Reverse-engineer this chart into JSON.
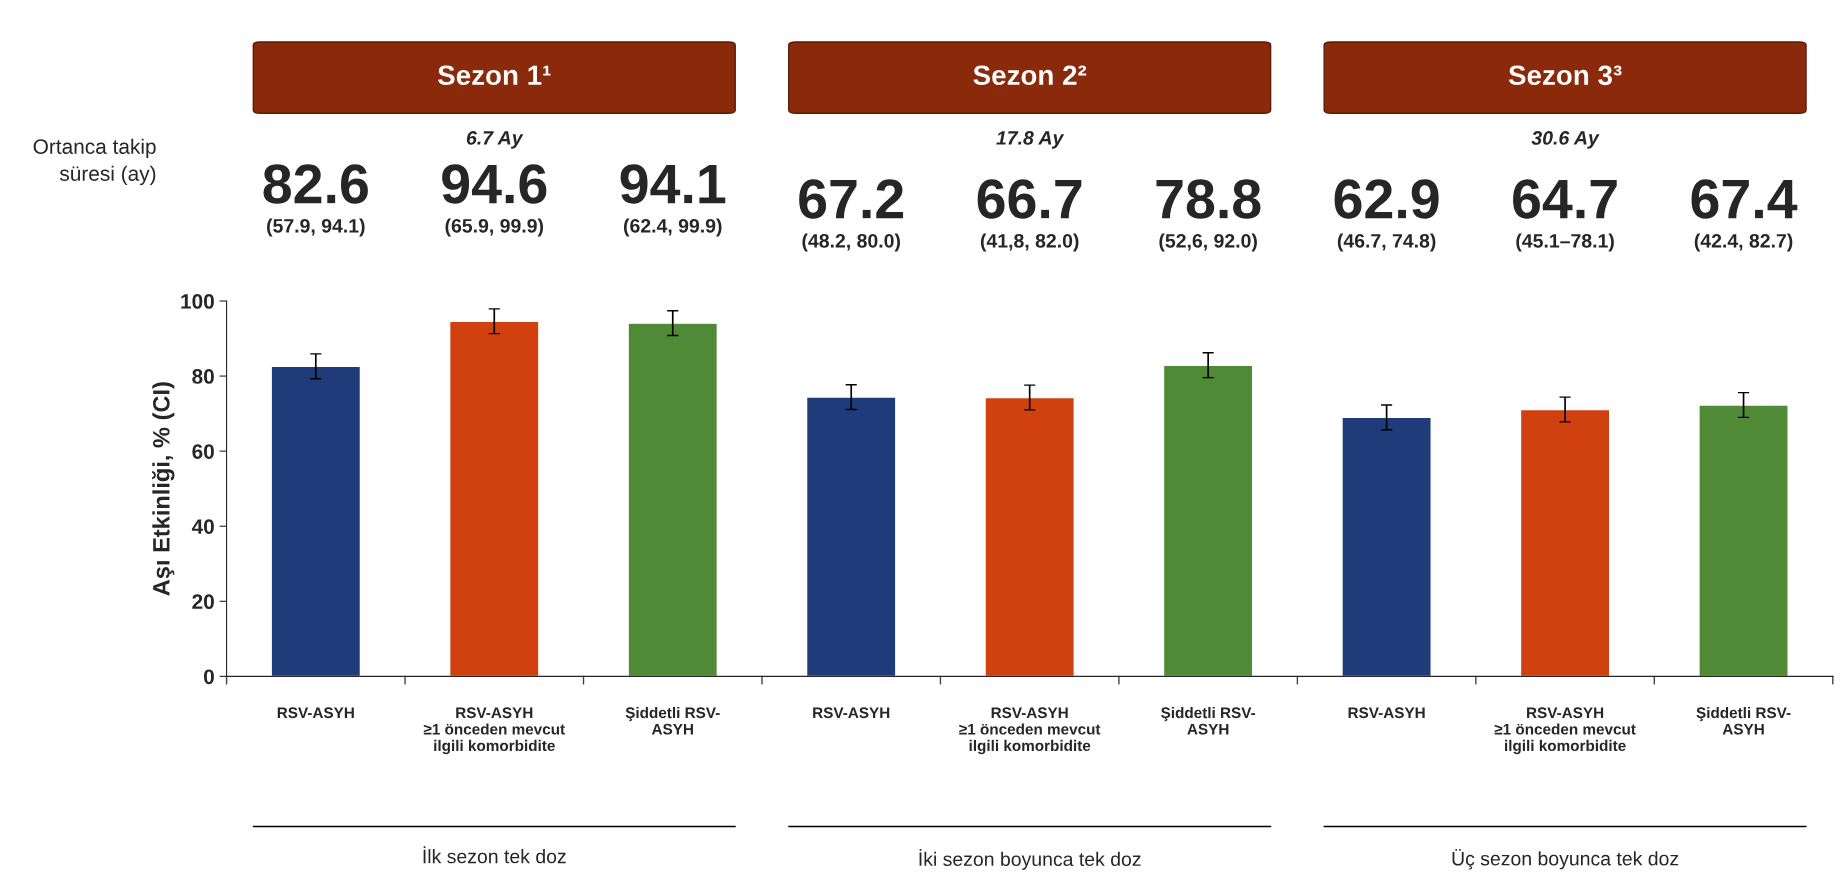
{
  "chart_data": {
    "type": "bar",
    "ylabel": "Aşı Etkinliği, % (CI)",
    "categories": [
      "RSV-ASYH",
      "RSV-ASYH\n≥1 önceden mevcut\nilgili komorbidite",
      "Şiddetli RSV-\nASYH",
      "RSV-ASYH",
      "RSV-ASYH\n≥1 önceden mevcut\nilgili komorbidite",
      "Şiddetli RSV-\nASYH",
      "RSV-ASYH",
      "RSV-ASYH\n≥1 önceden mevcut\nilgili komorbidite",
      "Şiddetli RSV-\nASYH"
    ],
    "values": [
      82.6,
      94.6,
      94.1,
      74.4,
      74.3,
      82.9,
      69.0,
      71.1,
      72.3
    ],
    "errors": [
      3.3,
      3.3,
      3.3,
      3.3,
      3.3,
      3.3,
      3.3,
      3.3,
      3.3
    ],
    "colors": [
      "#1f3b7a",
      "#d1410f",
      "#518a37",
      "#1f3b7a",
      "#d1410f",
      "#518a37",
      "#1f3b7a",
      "#d1410f",
      "#518a37"
    ],
    "ylim": [
      0,
      100
    ],
    "yticks": [
      0,
      20,
      40,
      60,
      80,
      100
    ],
    "grid": false,
    "legend": false,
    "annotations": [
      "82.6\n(57.9, 94.1)",
      "94.6\n(65.9, 99.9)",
      "94.1\n(62.4, 99.9)",
      "67.2\n(48.2, 80.0)",
      "66.7\n(41,8, 82.0)",
      "78.8\n(52,6, 92.0)",
      "62.9\n(46.7, 74.8)",
      "64.7\n(45.1–78.1)",
      "67.4\n(42.4, 82.7)",
      "Sezon 1¹",
      "Sezon 2²",
      "Sezon 3³",
      "6.7 Ay",
      "17.8 Ay",
      "30.6 Ay",
      "Ortanca takip\nsüresi (ay)",
      "İlk sezon tek doz",
      "İki sezon boyunca tek doz",
      "Üç sezon boyunca tek doz"
    ]
  }
}
